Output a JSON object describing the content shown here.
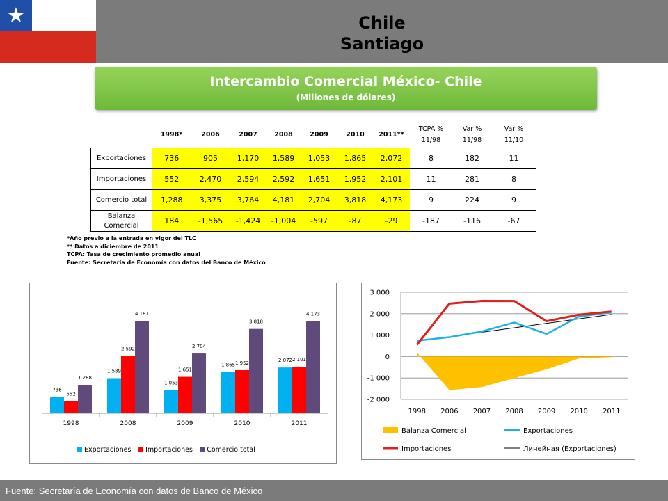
{
  "header": {
    "title_line1": "Chile",
    "title_line2": "Santiago",
    "flag_star": "★"
  },
  "banner": {
    "title": "Intercambio Comercial México- Chile",
    "subtitle": "(Millones de dólares)"
  },
  "table": {
    "columns": [
      "1998*",
      "2006",
      "2007",
      "2008",
      "2009",
      "2010",
      "2011**",
      "TCPA %\n11/98",
      "Var %\n11/98",
      "Var %\n11/10"
    ],
    "rows": [
      {
        "label": "Exportaciones",
        "values": [
          "736",
          "905",
          "1,170",
          "1,589",
          "1,053",
          "1,865",
          "2,072",
          "8",
          "182",
          "11"
        ]
      },
      {
        "label": "Importaciones",
        "values": [
          "552",
          "2,470",
          "2,594",
          "2,592",
          "1,651",
          "1,952",
          "2,101",
          "11",
          "281",
          "8"
        ]
      },
      {
        "label": "Comercio total",
        "values": [
          "1,288",
          "3,375",
          "3,764",
          "4,181",
          "2,704",
          "3,818",
          "4,173",
          "9",
          "224",
          "9"
        ]
      },
      {
        "label": "Balanza\nComercial",
        "values": [
          "184",
          "-1,565",
          "-1,424",
          "-1,004",
          "-597",
          "-87",
          "-29",
          "-187",
          "-116",
          "-67"
        ]
      }
    ]
  },
  "notes": [
    "*Año previo a la entrada en vigor del TLC",
    "** Datos a diciembre de 2011",
    "TCPA: Tasa de crecimiento promedio anual",
    "Fuente: Secretaria de Economía con datos del Banco de México"
  ],
  "footer": {
    "text": "Fuente: Secretaría de Economía con datos de Banco de México"
  },
  "colors": {
    "header_bg": "#7b7b7b",
    "banner_green": "#7cc443",
    "highlight_yellow": "#ffff00",
    "exports": "#00b0f0",
    "imports": "#ff0000",
    "total": "#604a7b",
    "balance": "#ffc000",
    "exports_line": "#1fb2e6",
    "imports_line": "#e02020",
    "trend": "#000000"
  },
  "chart_data": [
    {
      "type": "bar",
      "categories": [
        "1998",
        "2008",
        "2009",
        "2010",
        "2011"
      ],
      "series": [
        {
          "name": "Exportaciones",
          "values": [
            736,
            1589,
            1053,
            1865,
            2072
          ],
          "labels": [
            "736",
            "1 589",
            "1 053",
            "1 865",
            "2 072"
          ]
        },
        {
          "name": "Importaciones",
          "values": [
            552,
            2592,
            1651,
            1952,
            2101
          ],
          "labels": [
            "552",
            "2 592",
            "1 651",
            "1 952",
            "2 101"
          ]
        },
        {
          "name": "Comercio total",
          "values": [
            1288,
            4181,
            2704,
            3818,
            4173
          ],
          "labels": [
            "1 288",
            "4 181",
            "2 704",
            "3 818",
            "4 173"
          ]
        }
      ],
      "ylim": [
        0,
        4500
      ],
      "legend": "bottom"
    },
    {
      "type": "line",
      "categories": [
        "1998",
        "2006",
        "2007",
        "2008",
        "2009",
        "2010",
        "2011"
      ],
      "series": [
        {
          "name": "Balanza Comercial",
          "kind": "area",
          "values": [
            184,
            -1565,
            -1424,
            -1004,
            -597,
            -87,
            -29
          ]
        },
        {
          "name": "Exportaciones",
          "kind": "line",
          "values": [
            736,
            905,
            1170,
            1589,
            1053,
            1865,
            2072
          ]
        },
        {
          "name": "Importaciones",
          "kind": "line",
          "values": [
            552,
            2470,
            2594,
            2592,
            1651,
            1952,
            2101
          ]
        },
        {
          "name": "Линейная (Exportaciones)",
          "kind": "trend"
        }
      ],
      "yticks": [
        "3 000",
        "2 000",
        "1 000",
        "0",
        "-1 000",
        "-2 000"
      ],
      "ytick_values": [
        3000,
        2000,
        1000,
        0,
        -1000,
        -2000
      ],
      "ylim": [
        -2000,
        3000
      ],
      "grid": true,
      "legend": "bottom"
    }
  ]
}
